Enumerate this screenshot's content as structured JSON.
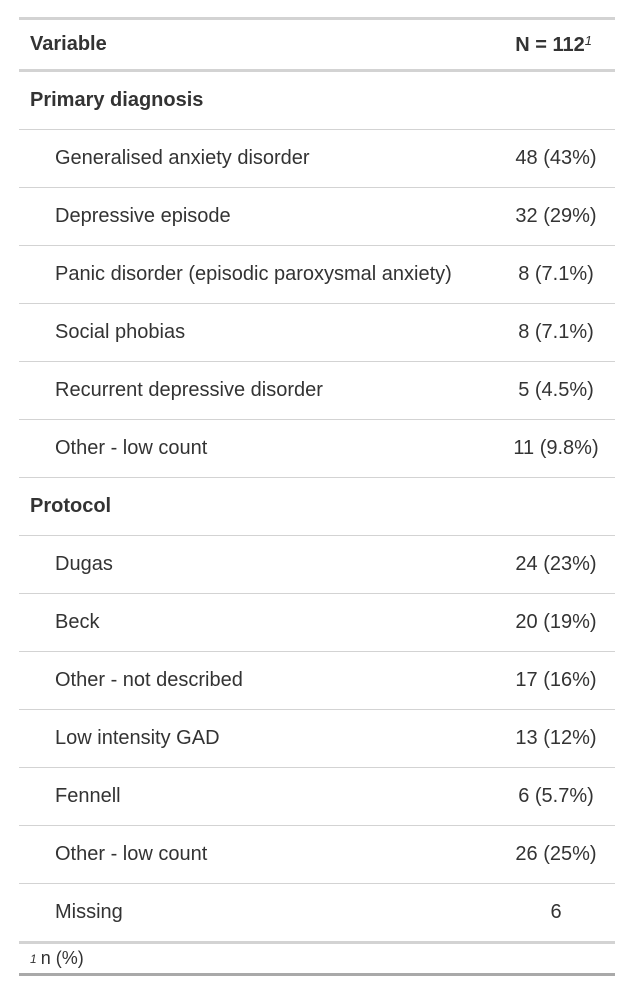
{
  "header": {
    "variable": "Variable",
    "n": "N = 112",
    "marker": "1"
  },
  "groups": [
    {
      "label": "Primary diagnosis",
      "rows": [
        {
          "label": "Generalised anxiety disorder",
          "value": "48 (43%)"
        },
        {
          "label": "Depressive episode",
          "value": "32 (29%)"
        },
        {
          "label": "Panic disorder (episodic paroxysmal anxiety)",
          "value": "8 (7.1%)"
        },
        {
          "label": "Social phobias",
          "value": "8 (7.1%)"
        },
        {
          "label": "Recurrent depressive disorder",
          "value": "5 (4.5%)"
        },
        {
          "label": "Other - low count",
          "value": "11 (9.8%)"
        }
      ]
    },
    {
      "label": "Protocol",
      "rows": [
        {
          "label": "Dugas",
          "value": "24 (23%)"
        },
        {
          "label": "Beck",
          "value": "20 (19%)"
        },
        {
          "label": "Other - not described",
          "value": "17 (16%)"
        },
        {
          "label": "Low intensity GAD",
          "value": "13 (12%)"
        },
        {
          "label": "Fennell",
          "value": "6 (5.7%)"
        },
        {
          "label": "Other - low count",
          "value": "26 (25%)"
        },
        {
          "label": "Missing",
          "value": "6"
        }
      ]
    }
  ],
  "footnote": {
    "marker": "1",
    "text": "n (%)"
  }
}
